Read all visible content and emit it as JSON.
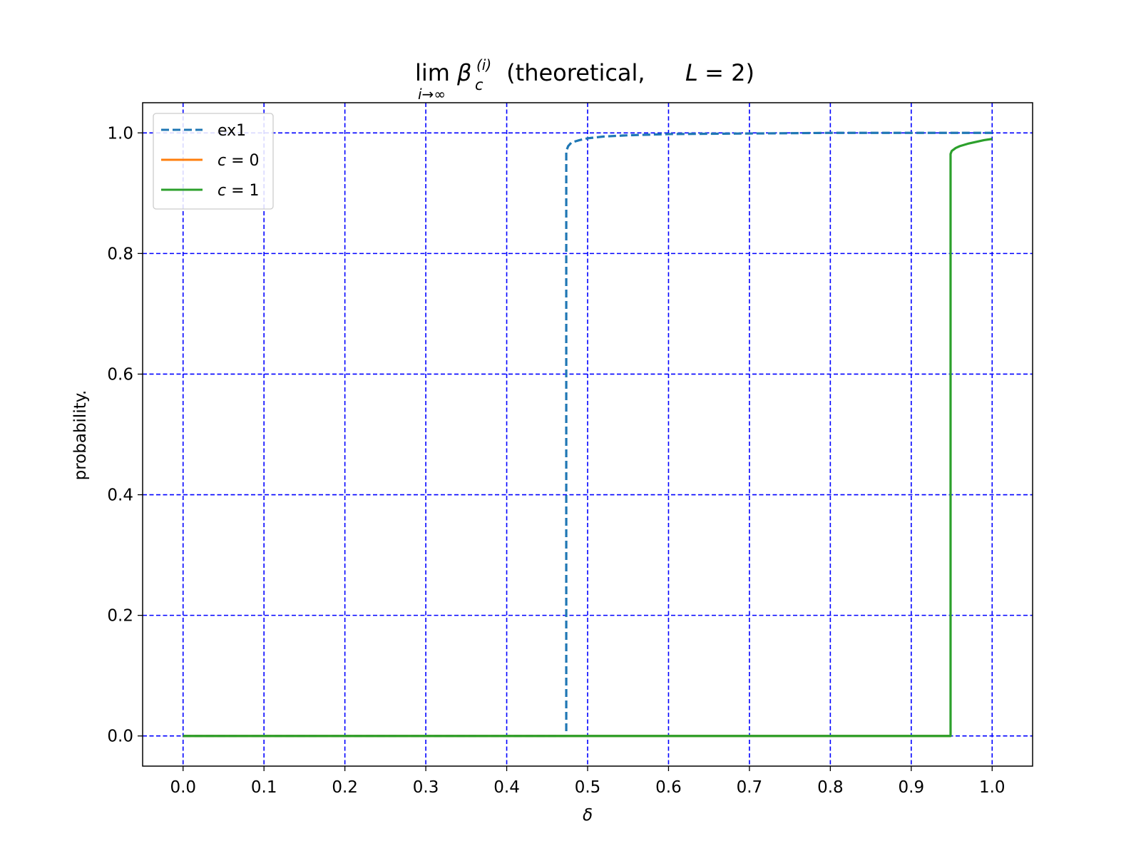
{
  "chart_data": {
    "type": "line",
    "title": {
      "lim": "lim",
      "lim_sub": "i→∞",
      "beta": "β",
      "beta_sub": "c",
      "beta_sup": "(i)",
      "text_before_L": " (theoretical, ",
      "L_var": "L",
      "text_after_L": " = 2)"
    },
    "xlabel": "δ",
    "ylabel": "probability.",
    "xlim": [
      -0.05,
      1.05
    ],
    "ylim": [
      -0.05,
      1.05
    ],
    "xticks": [
      0.0,
      0.1,
      0.2,
      0.3,
      0.4,
      0.5,
      0.6,
      0.7,
      0.8,
      0.9,
      1.0
    ],
    "xtick_labels": [
      "0.0",
      "0.1",
      "0.2",
      "0.3",
      "0.4",
      "0.5",
      "0.6",
      "0.7",
      "0.8",
      "0.9",
      "1.0"
    ],
    "yticks": [
      0.0,
      0.2,
      0.4,
      0.6,
      0.8,
      1.0
    ],
    "ytick_labels": [
      "0.0",
      "0.2",
      "0.4",
      "0.6",
      "0.8",
      "1.0"
    ],
    "grid": true,
    "grid_color": "#0000ff",
    "legend_position": "upper-left",
    "series": [
      {
        "name": "ex1",
        "color": "#1f77b4",
        "style": "dashed",
        "x": [
          0.0,
          0.1,
          0.2,
          0.3,
          0.4,
          0.47,
          0.4736,
          0.4736,
          0.476,
          0.48,
          0.49,
          0.5,
          0.52,
          0.55,
          0.6,
          0.7,
          0.8,
          0.9,
          1.0
        ],
        "y": [
          0.0,
          0.0,
          0.0,
          0.0,
          0.0,
          0.0,
          0.0,
          0.97,
          0.978,
          0.984,
          0.988,
          0.991,
          0.994,
          0.996,
          0.998,
          0.999,
          1.0,
          1.0,
          1.0
        ]
      },
      {
        "name": "c = 0",
        "name_var": "c",
        "name_rest": " = 0",
        "color": "#ff7f0e",
        "style": "solid",
        "x": [
          0.0,
          0.5,
          0.9486
        ],
        "y": [
          0.0,
          0.0,
          0.0
        ]
      },
      {
        "name": "c = 1",
        "name_var": "c",
        "name_rest": " = 1",
        "color": "#2ca02c",
        "style": "solid",
        "x": [
          0.0,
          0.2,
          0.4,
          0.6,
          0.8,
          0.9486,
          0.9486,
          0.95,
          0.955,
          0.96,
          0.97,
          0.98,
          0.99,
          1.0
        ],
        "y": [
          0.0,
          0.0,
          0.0,
          0.0,
          0.0,
          0.0,
          0.965,
          0.97,
          0.975,
          0.978,
          0.982,
          0.985,
          0.988,
          0.99
        ]
      }
    ]
  }
}
